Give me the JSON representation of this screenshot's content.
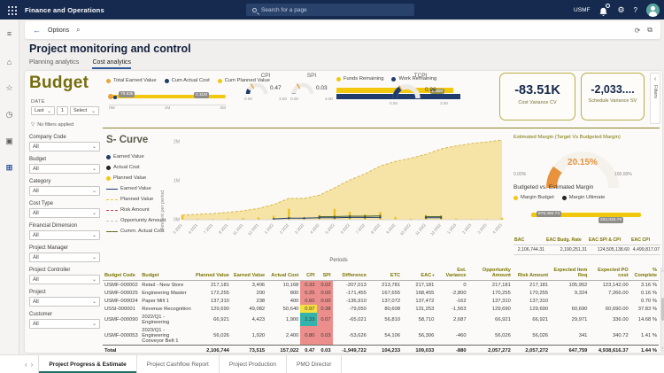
{
  "topbar": {
    "app_title": "Finance and Operations",
    "search_placeholder": "Search for a page",
    "company": "USMF"
  },
  "icons": {
    "back": "←",
    "search": "⌕",
    "refresh": "⟳",
    "popout": "⧉",
    "gear": "⚙",
    "help": "?",
    "chevron": "⌄",
    "funnel": "▽",
    "arrow_left": "‹",
    "arrow_right": "›",
    "caret_up": "˄",
    "caret_down": "˅",
    "sort": "▾",
    "menu": "≡",
    "home": "⌂",
    "star": "☆",
    "recent": "◷",
    "module": "▣",
    "workspace": "⊞"
  },
  "toolbar": {
    "options_label": "Options"
  },
  "page": {
    "title": "Project monitoring and control",
    "tabs": [
      {
        "label": "Planning analytics",
        "active": false
      },
      {
        "label": "Cost analytics",
        "active": true
      }
    ]
  },
  "budget": {
    "heading": "Budget",
    "date_label": "DATE",
    "date_controls": {
      "mode": "Last",
      "value": "1",
      "unit": "Select"
    },
    "no_filters": "No filters applied",
    "legend": [
      {
        "label": "Total Earned Value",
        "color": "#E8A33D"
      },
      {
        "label": "Cum Actual Cost",
        "color": "#1F3C6D"
      },
      {
        "label": "Cum Planned Value",
        "color": "#F2C80F"
      }
    ],
    "slider": {
      "left_label": "79.82k",
      "right_label": "2.11M",
      "axis": [
        "0M",
        "1M",
        "2M"
      ]
    },
    "gauges": [
      {
        "title": "CPI",
        "value": "0.47",
        "min": "0.00",
        "max": "3.00",
        "frac": 0.157
      },
      {
        "title": "SPI",
        "value": "0.03",
        "min": "0.00",
        "max": "3.00",
        "frac": 0.012
      },
      {
        "title": "TCPI",
        "value": "0.96",
        "min": "0.00",
        "max": "3.00",
        "frac": 0.32
      }
    ],
    "funds_legend": [
      {
        "label": "Funds Remaining",
        "color": "#F2C80F"
      },
      {
        "label": "Work Remaining",
        "color": "#1F3C6D"
      }
    ],
    "funds_bar_label": "1.95M",
    "kpis": [
      {
        "value": "-83.51K",
        "label": "Cost Variance CV"
      },
      {
        "value": "-2,033....",
        "label": "Schedule Variance SV"
      }
    ]
  },
  "filters_strip": {
    "label": "Filters"
  },
  "filters": {
    "items": [
      {
        "label": "Company Code",
        "value": "All"
      },
      {
        "label": "Budget",
        "value": "All"
      },
      {
        "label": "Category",
        "value": "All"
      },
      {
        "label": "Cost Type",
        "value": "All"
      },
      {
        "label": "Financial Dimension",
        "value": "All"
      },
      {
        "label": "Project Manager",
        "value": "All"
      },
      {
        "label": "Project Controller",
        "value": "All"
      },
      {
        "label": "Project",
        "value": "All"
      },
      {
        "label": "Customer",
        "value": "All"
      }
    ]
  },
  "scurve": {
    "title": "S- Curve",
    "ylabel": "Amount per period",
    "xlabel": "Periods",
    "legend": [
      {
        "kind": "dot",
        "label": "Earned Value",
        "color": "#1F3C6D"
      },
      {
        "kind": "dot",
        "label": "Actual Cost",
        "color": "#252423"
      },
      {
        "kind": "dot",
        "label": "Planned Value",
        "color": "#F2C80F"
      },
      {
        "kind": "line",
        "label": "Earned Value",
        "color": "#1F3C6D",
        "dash": false
      },
      {
        "kind": "line",
        "label": "Planned Value",
        "color": "#E8C63F",
        "dash": true
      },
      {
        "kind": "line",
        "label": "Risk Amount",
        "color": "#D64550",
        "dash": true
      },
      {
        "kind": "line",
        "label": "Opportunity Amount",
        "color": "#C8C6C4",
        "dash": true
      },
      {
        "kind": "line",
        "label": "Cumm. Actual Cost",
        "color": "#6B6B22",
        "dash": false
      }
    ],
    "chart_data": {
      "type": "area",
      "x": [
        "5 2021",
        "6 2021",
        "7 2021",
        "8 2021",
        "11 2021",
        "12 2021",
        "1 2022",
        "2 2022",
        "3 2022",
        "4 2022",
        "5 2022",
        "6 2022",
        "7 2022",
        "8 2022",
        "9 2022",
        "10 2022",
        "11 2022",
        "12 2022",
        "1 2023",
        "2 2023",
        "3 2023",
        "4 2023"
      ],
      "yticks": [
        "0M",
        "1M",
        "2M"
      ],
      "ylim_m": [
        0,
        2.05
      ],
      "series": [
        {
          "name": "Cum Planned Value (M)",
          "values": [
            0.12,
            0.14,
            0.16,
            0.19,
            0.23,
            0.29,
            0.39,
            0.55,
            0.55,
            0.63,
            0.82,
            1.02,
            1.18,
            1.38,
            1.5,
            1.58,
            1.68,
            1.82,
            1.9,
            1.96,
            2.0,
            2.05
          ]
        },
        {
          "name": "Planned Value per period (M)",
          "values": [
            0.12,
            0.02,
            0.02,
            0.03,
            0.04,
            0.06,
            0.1,
            0.28,
            0.04,
            0.12,
            0.28,
            0.2,
            0.14,
            0.2,
            0.07,
            0.03,
            0.12,
            0.1,
            0.03,
            0.02,
            0.02,
            0.05
          ]
        },
        {
          "name": "Earned Value (M)",
          "values": [
            null,
            null,
            null,
            null,
            null,
            null,
            0.02,
            0.04,
            0.04,
            0.05,
            0.05,
            0.06,
            0.06,
            0.06,
            null,
            null,
            0.05,
            0.05,
            null,
            null,
            null,
            null
          ]
        },
        {
          "name": "Cumm. Actual Cost (M)",
          "values": [
            null,
            null,
            null,
            null,
            null,
            null,
            null,
            null,
            null,
            0.08,
            0.08,
            0.09,
            0.09,
            0.1,
            null,
            null,
            0.08,
            0.08,
            null,
            null,
            null,
            null
          ]
        }
      ]
    }
  },
  "margin": {
    "title": "Estimated Margin (Target Vs Budgeted Margin)",
    "gauge": {
      "value": "20.15%",
      "min": "0.00%",
      "max": "100.00%",
      "frac": 0.2015
    },
    "subtitle": "Budgeted vs. Estimated Margin",
    "legend": [
      {
        "label": "Margin Budget",
        "color": "#F2C80F"
      },
      {
        "label": "Margin Ultimate",
        "color": "#252423"
      }
    ],
    "bar_labels": [
      "678,450.73",
      "202,033.76"
    ],
    "stats": {
      "headers": [
        "BAC",
        "EAC Budg. Rate",
        "EAC SPI & CPI",
        "EAC CPI"
      ],
      "values": [
        "2,106,744.31",
        "2,190,251.31",
        "124,505,138.60",
        "4,499,817.07"
      ]
    }
  },
  "table": {
    "headers": [
      "Budget Code",
      "Budget",
      "Planned Value",
      "Earned Value",
      "Actual Cost",
      "CPI",
      "SPI",
      "Difference",
      "ETC",
      "EAC",
      "Est. Variance",
      "Opportunity Amount",
      "Risk Amount",
      "Expected Item Req",
      "Expected PO cost",
      "% Complete"
    ],
    "sort_header": "EAC",
    "rows": [
      {
        "code": "USMF-000002",
        "name": "Retail - New Store",
        "pv": "217,181",
        "ev": "3,406",
        "ac": "10,168",
        "cpi": "0.33",
        "spi": "0.02",
        "cpi_bg": "red",
        "spi_bg": "red",
        "diff": "-207,013",
        "etc": "213,781",
        "eac": "217,181",
        "estvar": "0",
        "opp": "217,181",
        "risk": "217,181",
        "itemreq": "105,952",
        "pocost": "123,142.00",
        "pct": "3.16 %"
      },
      {
        "code": "USMF-000025",
        "name": "Engineering Master",
        "pv": "172,255",
        "ev": "200",
        "ac": "800",
        "cpi": "0.25",
        "spi": "0.00",
        "cpi_bg": "red",
        "spi_bg": "red",
        "diff": "-171,455",
        "etc": "167,655",
        "eac": "168,455",
        "estvar": "-2,800",
        "opp": "170,255",
        "risk": "170,255",
        "itemreq": "9,324",
        "pocost": "7,266.00",
        "pct": "0.16 %"
      },
      {
        "code": "USMF-000024",
        "name": "Paper Mill 1",
        "pv": "137,310",
        "ev": "238",
        "ac": "400",
        "cpi": "0.60",
        "spi": "0.00",
        "cpi_bg": "red",
        "spi_bg": "red",
        "diff": "-136,910",
        "etc": "137,072",
        "eac": "137,472",
        "estvar": "-162",
        "opp": "137,310",
        "risk": "137,310",
        "itemreq": "",
        "pocost": "",
        "pct": "0.70 %"
      },
      {
        "code": "USSI-000001",
        "name": "Revenue Recognition",
        "pv": "129,690",
        "ev": "49,082",
        "ac": "50,640",
        "cpi": "0.97",
        "spi": "0.38",
        "cpi_bg": "yellow",
        "spi_bg": "red",
        "diff": "-79,050",
        "etc": "80,608",
        "eac": "131,253",
        "estvar": "-1,563",
        "opp": "129,690",
        "risk": "129,690",
        "itemreq": "60,690",
        "pocost": "60,690.00",
        "pct": "37.83 %"
      },
      {
        "code": "USMF-000090",
        "name": "2022/Q1 - Engineering",
        "pv": "66,921",
        "ev": "4,423",
        "ac": "1,900",
        "cpi": "2.33",
        "spi": "0.07",
        "cpi_bg": "teal",
        "spi_bg": "red",
        "diff": "-65,021",
        "etc": "56,810",
        "eac": "58,710",
        "estvar": "2,687",
        "opp": "66,921",
        "risk": "66,921",
        "itemreq": "29,971",
        "pocost": "336.00",
        "pct": "14.68 %"
      },
      {
        "code": "USMF-000053",
        "name": "2023/Q1 - Engineering Conveyor Belt 1",
        "pv": "56,026",
        "ev": "1,920",
        "ac": "2,400",
        "cpi": "0.80",
        "spi": "0.03",
        "cpi_bg": "red",
        "spi_bg": "red",
        "diff": "-53,626",
        "etc": "54,106",
        "eac": "56,306",
        "estvar": "-460",
        "opp": "56,026",
        "risk": "56,026",
        "itemreq": "341",
        "pocost": "340.72",
        "pct": "1.41 %"
      }
    ],
    "total": {
      "code": "Total",
      "name": "",
      "pv": "2,106,744",
      "ev": "73,515",
      "ac": "157,022",
      "cpi": "0.47",
      "spi": "0.03",
      "diff": "-1,949,722",
      "etc": "104,233",
      "eac": "109,033",
      "estvar": "-880",
      "opp": "2,057,272",
      "risk": "2,057,272",
      "itemreq": "647,759",
      "pocost": "4,938,616.37",
      "pct": "1.44 %"
    }
  },
  "footer": {
    "tabs": [
      {
        "label": "Project Progress & Estimate",
        "active": true
      },
      {
        "label": "Project Cashflow Report",
        "active": false
      },
      {
        "label": "Project Production",
        "active": false
      },
      {
        "label": "PMO Director",
        "active": false
      }
    ]
  }
}
